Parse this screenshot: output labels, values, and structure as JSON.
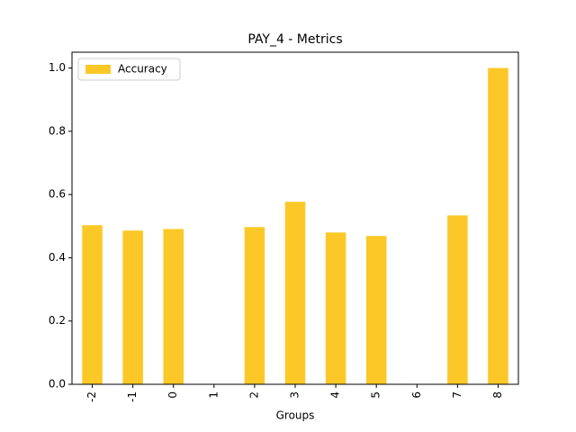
{
  "chart_data": {
    "type": "bar",
    "title": "PAY_4 - Metrics",
    "x_label": "Groups",
    "categories": [
      "-2",
      "-1",
      "0",
      "1",
      "2",
      "3",
      "4",
      "5",
      "6",
      "7",
      "8"
    ],
    "series": [
      {
        "name": "Accuracy",
        "color": "#fcc828",
        "values": [
          0.503,
          0.486,
          0.491,
          0,
          0.497,
          0.577,
          0.48,
          0.469,
          0,
          0.534,
          1.0
        ]
      }
    ],
    "ylim": [
      0,
      1.05
    ],
    "yticks": [
      {
        "value": 0,
        "label": "0.0"
      },
      {
        "value": 0.2,
        "label": "0.2"
      },
      {
        "value": 0.4,
        "label": "0.4"
      },
      {
        "value": 0.6,
        "label": "0.6"
      },
      {
        "value": 0.8,
        "label": "0.8"
      },
      {
        "value": 1.0,
        "label": "1.0"
      }
    ],
    "legend": "upper left",
    "grid": false
  }
}
